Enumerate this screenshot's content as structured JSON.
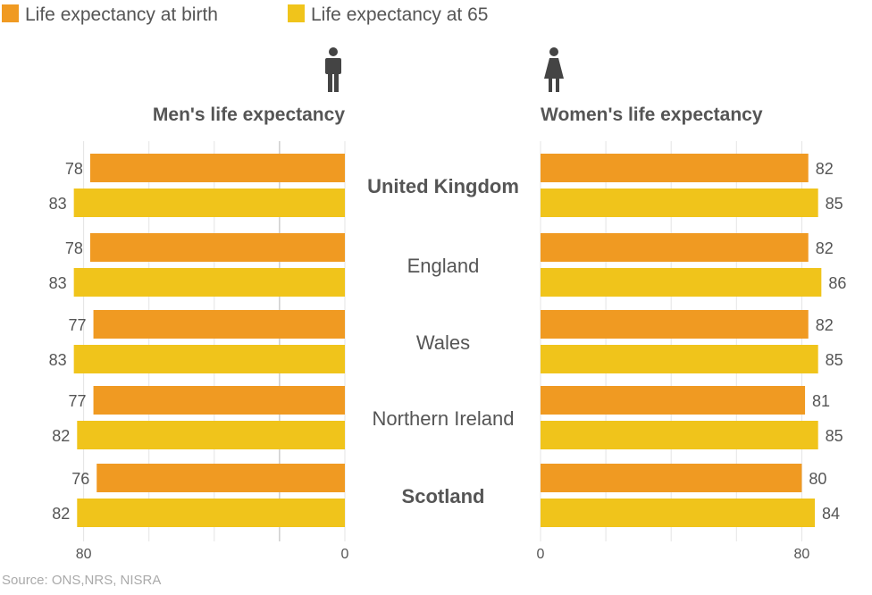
{
  "chart_data": {
    "type": "bar",
    "orientation": "horizontal-butterfly",
    "legend": {
      "placement": "top-left",
      "entries": [
        "Life expectancy at birth",
        "Life expectancy at 65"
      ]
    },
    "categories": [
      "United Kingdom",
      "England",
      "Wales",
      "Northern Ireland",
      "Scotland"
    ],
    "bold_categories": [
      "United Kingdom",
      "Scotland"
    ],
    "panels": [
      {
        "title": "Men's life expectancy",
        "icon": "man-icon",
        "direction": "right-to-left",
        "xlim": [
          0,
          86
        ],
        "ticks": [
          0,
          80
        ],
        "grid": [
          0,
          20,
          40,
          60,
          80
        ],
        "series": [
          {
            "name": "Life expectancy at birth",
            "values": [
              78,
              78,
              77,
              77,
              76
            ]
          },
          {
            "name": "Life expectancy at 65",
            "values": [
              83,
              83,
              83,
              82,
              82
            ]
          }
        ]
      },
      {
        "title": "Women's life expectancy",
        "icon": "woman-icon",
        "direction": "left-to-right",
        "xlim": [
          0,
          86
        ],
        "ticks": [
          0,
          80
        ],
        "grid": [
          0,
          20,
          40,
          60,
          80
        ],
        "series": [
          {
            "name": "Life expectancy at birth",
            "values": [
              82,
              82,
              82,
              81,
              80
            ]
          },
          {
            "name": "Life expectancy at 65",
            "values": [
              85,
              86,
              85,
              85,
              84
            ]
          }
        ]
      }
    ],
    "colors": {
      "birth": "#f09a22",
      "at65": "#f0c41b",
      "grid": "#e4e4e4",
      "grid_dark": "#b5b5b5",
      "text": "#555555"
    },
    "source": "Source: ONS,NRS, NISRA"
  }
}
